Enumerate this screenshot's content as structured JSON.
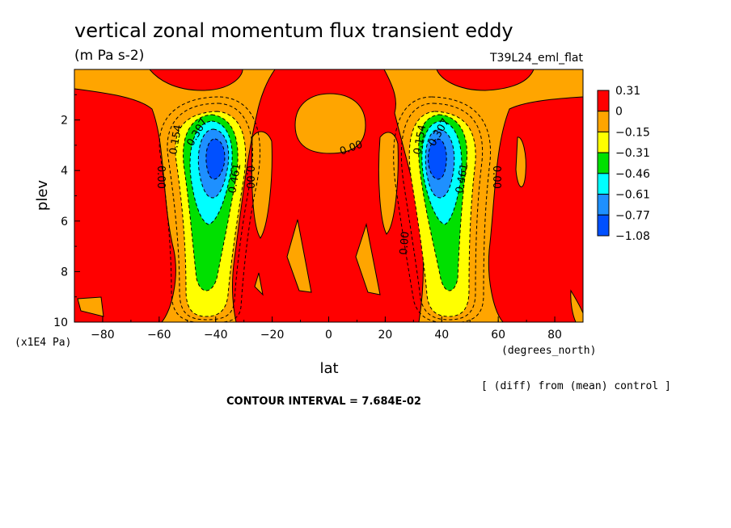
{
  "chart_data": {
    "type": "contour",
    "title": "vertical zonal momentum flux transient eddy",
    "units": "(m Pa s-2)",
    "experiment": "T39L24_eml_flat",
    "xlabel": "lat",
    "xunits": "(degrees_north)",
    "ylabel": "plev",
    "yunits": "(x1E4 Pa)",
    "xlim": [
      -90,
      90
    ],
    "ylim": [
      10,
      0
    ],
    "xticks": [
      "-80",
      "-60",
      "-40",
      "-20",
      "0",
      "20",
      "40",
      "60",
      "80"
    ],
    "yticks": [
      "2",
      "4",
      "6",
      "8",
      "10"
    ],
    "colorbar": {
      "labels": [
        "0.31",
        "0",
        "-0.15",
        "-0.31",
        "-0.46",
        "-0.61",
        "-0.77",
        "-1.08"
      ],
      "colors": [
        "#ff0000",
        "#ffa500",
        "#ffff00",
        "#00e000",
        "#00ffff",
        "#1e90ff",
        "#0050ff"
      ]
    },
    "contour_labels": [
      "0.154",
      "0.307",
      "0.461",
      "0.00"
    ],
    "features": [
      {
        "lat": -38,
        "plev": 3.4,
        "min": -1.08
      },
      {
        "lat": 38,
        "plev": 3.4,
        "min": -1.08
      }
    ],
    "note": "[ (diff) from (mean) control ]",
    "contour_interval": "CONTOUR INTERVAL = 7.684E-02"
  }
}
